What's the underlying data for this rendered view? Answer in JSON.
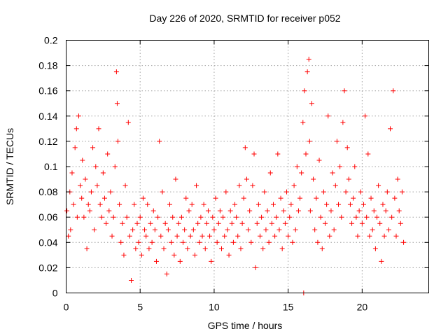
{
  "chart_data": {
    "type": "scatter",
    "title": "Day 226 of 2020, SRMTID for receiver p052",
    "xlabel": "GPS time / hours",
    "ylabel": "SRMTID / TECUs",
    "xlim": [
      0,
      24.5
    ],
    "ylim": [
      0,
      0.2
    ],
    "xticks": [
      0,
      5,
      10,
      15,
      20
    ],
    "xtick_labels": [
      "0",
      "5",
      "10",
      "15",
      "20"
    ],
    "yticks": [
      0,
      0.02,
      0.04,
      0.06,
      0.08,
      0.1,
      0.12,
      0.14,
      0.16,
      0.18,
      0.2
    ],
    "ytick_labels": [
      "0",
      "0.02",
      "0.04",
      "0.06",
      "0.08",
      "0.1",
      "0.12",
      "0.14",
      "0.16",
      "0.18",
      "0.2"
    ],
    "grid": true,
    "marker": "+",
    "marker_color": "#ff0000",
    "series": [
      {
        "name": "SRMTID",
        "points": [
          [
            0.05,
            0.065
          ],
          [
            0.15,
            0.045
          ],
          [
            0.25,
            0.08
          ],
          [
            0.3,
            0.05
          ],
          [
            0.4,
            0.095
          ],
          [
            0.5,
            0.07
          ],
          [
            0.6,
            0.115
          ],
          [
            0.7,
            0.13
          ],
          [
            0.75,
            0.06
          ],
          [
            0.85,
            0.14
          ],
          [
            0.95,
            0.085
          ],
          [
            1.05,
            0.075
          ],
          [
            1.1,
            0.105
          ],
          [
            1.2,
            0.06
          ],
          [
            1.3,
            0.09
          ],
          [
            1.4,
            0.035
          ],
          [
            1.5,
            0.07
          ],
          [
            1.6,
            0.065
          ],
          [
            1.7,
            0.08
          ],
          [
            1.8,
            0.115
          ],
          [
            1.9,
            0.05
          ],
          [
            2.0,
            0.1
          ],
          [
            2.1,
            0.085
          ],
          [
            2.2,
            0.13
          ],
          [
            2.3,
            0.07
          ],
          [
            2.4,
            0.06
          ],
          [
            2.5,
            0.095
          ],
          [
            2.6,
            0.075
          ],
          [
            2.7,
            0.055
          ],
          [
            2.8,
            0.11
          ],
          [
            2.9,
            0.065
          ],
          [
            3.0,
            0.08
          ],
          [
            3.1,
            0.045
          ],
          [
            3.2,
            0.06
          ],
          [
            3.3,
            0.1
          ],
          [
            3.4,
            0.175
          ],
          [
            3.45,
            0.15
          ],
          [
            3.5,
            0.12
          ],
          [
            3.6,
            0.07
          ],
          [
            3.7,
            0.04
          ],
          [
            3.8,
            0.055
          ],
          [
            3.9,
            0.03
          ],
          [
            4.0,
            0.085
          ],
          [
            4.1,
            0.06
          ],
          [
            4.2,
            0.135
          ],
          [
            4.3,
            0.045
          ],
          [
            4.4,
            0.01
          ],
          [
            4.5,
            0.05
          ],
          [
            4.6,
            0.07
          ],
          [
            4.7,
            0.035
          ],
          [
            4.8,
            0.055
          ],
          [
            4.9,
            0.04
          ],
          [
            5.0,
            0.06
          ],
          [
            5.1,
            0.03
          ],
          [
            5.2,
            0.075
          ],
          [
            5.3,
            0.05
          ],
          [
            5.4,
            0.045
          ],
          [
            5.5,
            0.07
          ],
          [
            5.6,
            0.035
          ],
          [
            5.7,
            0.055
          ],
          [
            5.8,
            0.04
          ],
          [
            5.9,
            0.065
          ],
          [
            6.0,
            0.05
          ],
          [
            6.1,
            0.025
          ],
          [
            6.2,
            0.06
          ],
          [
            6.3,
            0.12
          ],
          [
            6.4,
            0.045
          ],
          [
            6.5,
            0.08
          ],
          [
            6.6,
            0.035
          ],
          [
            6.7,
            0.055
          ],
          [
            6.8,
            0.015
          ],
          [
            6.9,
            0.05
          ],
          [
            7.0,
            0.07
          ],
          [
            7.1,
            0.04
          ],
          [
            7.2,
            0.06
          ],
          [
            7.3,
            0.03
          ],
          [
            7.4,
            0.09
          ],
          [
            7.5,
            0.045
          ],
          [
            7.6,
            0.055
          ],
          [
            7.7,
            0.025
          ],
          [
            7.8,
            0.06
          ],
          [
            7.9,
            0.04
          ],
          [
            8.0,
            0.05
          ],
          [
            8.1,
            0.075
          ],
          [
            8.2,
            0.035
          ],
          [
            8.3,
            0.065
          ],
          [
            8.4,
            0.045
          ],
          [
            8.5,
            0.07
          ],
          [
            8.6,
            0.05
          ],
          [
            8.7,
            0.03
          ],
          [
            8.8,
            0.085
          ],
          [
            8.9,
            0.055
          ],
          [
            9.0,
            0.04
          ],
          [
            9.1,
            0.06
          ],
          [
            9.2,
            0.045
          ],
          [
            9.3,
            0.07
          ],
          [
            9.4,
            0.035
          ],
          [
            9.5,
            0.055
          ],
          [
            9.6,
            0.065
          ],
          [
            9.7,
            0.045
          ],
          [
            9.8,
            0.025
          ],
          [
            9.9,
            0.06
          ],
          [
            10.0,
            0.05
          ],
          [
            10.1,
            0.075
          ],
          [
            10.2,
            0.04
          ],
          [
            10.3,
            0.055
          ],
          [
            10.4,
            0.065
          ],
          [
            10.5,
            0.035
          ],
          [
            10.6,
            0.06
          ],
          [
            10.7,
            0.045
          ],
          [
            10.8,
            0.08
          ],
          [
            10.9,
            0.05
          ],
          [
            11.0,
            0.03
          ],
          [
            11.1,
            0.065
          ],
          [
            11.2,
            0.055
          ],
          [
            11.3,
            0.04
          ],
          [
            11.4,
            0.07
          ],
          [
            11.5,
            0.06
          ],
          [
            11.6,
            0.045
          ],
          [
            11.7,
            0.085
          ],
          [
            11.8,
            0.035
          ],
          [
            11.9,
            0.055
          ],
          [
            12.0,
            0.075
          ],
          [
            12.1,
            0.115
          ],
          [
            12.2,
            0.09
          ],
          [
            12.3,
            0.05
          ],
          [
            12.4,
            0.065
          ],
          [
            12.5,
            0.04
          ],
          [
            12.6,
            0.085
          ],
          [
            12.7,
            0.11
          ],
          [
            12.8,
            0.02
          ],
          [
            12.9,
            0.055
          ],
          [
            13.0,
            0.07
          ],
          [
            13.1,
            0.045
          ],
          [
            13.2,
            0.06
          ],
          [
            13.3,
            0.035
          ],
          [
            13.4,
            0.08
          ],
          [
            13.5,
            0.05
          ],
          [
            13.6,
            0.065
          ],
          [
            13.7,
            0.04
          ],
          [
            13.8,
            0.095
          ],
          [
            13.9,
            0.055
          ],
          [
            14.0,
            0.07
          ],
          [
            14.1,
            0.045
          ],
          [
            14.2,
            0.06
          ],
          [
            14.3,
            0.11
          ],
          [
            14.4,
            0.05
          ],
          [
            14.5,
            0.075
          ],
          [
            14.6,
            0.035
          ],
          [
            14.7,
            0.065
          ],
          [
            14.8,
            0.055
          ],
          [
            14.9,
            0.08
          ],
          [
            15.0,
            0.045
          ],
          [
            15.1,
            0.06
          ],
          [
            15.2,
            0.07
          ],
          [
            15.3,
            0.04
          ],
          [
            15.4,
            0.085
          ],
          [
            15.5,
            0.05
          ],
          [
            15.6,
            0.1
          ],
          [
            15.7,
            0.065
          ],
          [
            15.8,
            0.075
          ],
          [
            15.9,
            0.095
          ],
          [
            16.0,
            0.135
          ],
          [
            16.05,
            0.0
          ],
          [
            16.1,
            0.16
          ],
          [
            16.2,
            0.11
          ],
          [
            16.3,
            0.175
          ],
          [
            16.4,
            0.185
          ],
          [
            16.45,
            0.12
          ],
          [
            16.5,
            0.065
          ],
          [
            16.6,
            0.15
          ],
          [
            16.7,
            0.09
          ],
          [
            16.8,
            0.05
          ],
          [
            16.9,
            0.075
          ],
          [
            17.0,
            0.04
          ],
          [
            17.1,
            0.105
          ],
          [
            17.2,
            0.06
          ],
          [
            17.3,
            0.035
          ],
          [
            17.4,
            0.08
          ],
          [
            17.5,
            0.055
          ],
          [
            17.6,
            0.07
          ],
          [
            17.7,
            0.14
          ],
          [
            17.8,
            0.045
          ],
          [
            17.9,
            0.065
          ],
          [
            18.0,
            0.095
          ],
          [
            18.1,
            0.05
          ],
          [
            18.2,
            0.085
          ],
          [
            18.3,
            0.12
          ],
          [
            18.4,
            0.07
          ],
          [
            18.5,
            0.1
          ],
          [
            18.6,
            0.06
          ],
          [
            18.7,
            0.135
          ],
          [
            18.8,
            0.16
          ],
          [
            18.9,
            0.08
          ],
          [
            19.0,
            0.115
          ],
          [
            19.1,
            0.09
          ],
          [
            19.2,
            0.07
          ],
          [
            19.3,
            0.055
          ],
          [
            19.4,
            0.075
          ],
          [
            19.5,
            0.1
          ],
          [
            19.6,
            0.06
          ],
          [
            19.7,
            0.045
          ],
          [
            19.8,
            0.065
          ],
          [
            19.9,
            0.08
          ],
          [
            20.0,
            0.055
          ],
          [
            20.1,
            0.07
          ],
          [
            20.2,
            0.14
          ],
          [
            20.3,
            0.06
          ],
          [
            20.4,
            0.11
          ],
          [
            20.5,
            0.045
          ],
          [
            20.6,
            0.075
          ],
          [
            20.7,
            0.05
          ],
          [
            20.8,
            0.065
          ],
          [
            20.9,
            0.035
          ],
          [
            21.0,
            0.06
          ],
          [
            21.1,
            0.085
          ],
          [
            21.2,
            0.055
          ],
          [
            21.3,
            0.025
          ],
          [
            21.4,
            0.07
          ],
          [
            21.5,
            0.045
          ],
          [
            21.6,
            0.065
          ],
          [
            21.7,
            0.08
          ],
          [
            21.8,
            0.05
          ],
          [
            21.9,
            0.13
          ],
          [
            22.0,
            0.06
          ],
          [
            22.1,
            0.16
          ],
          [
            22.2,
            0.075
          ],
          [
            22.3,
            0.045
          ],
          [
            22.4,
            0.09
          ],
          [
            22.5,
            0.065
          ],
          [
            22.6,
            0.055
          ],
          [
            22.7,
            0.08
          ],
          [
            22.8,
            0.04
          ]
        ]
      }
    ]
  }
}
